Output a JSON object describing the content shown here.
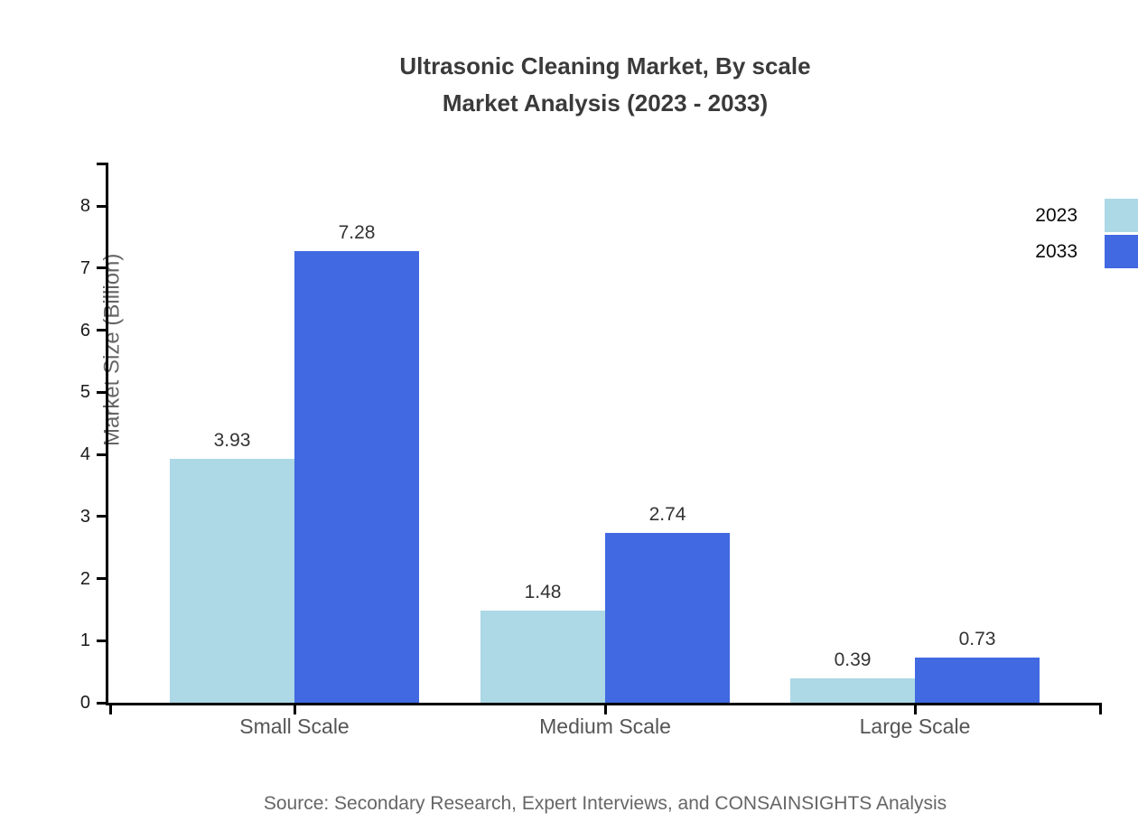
{
  "title": {
    "line1": "Ultrasonic Cleaning Market, By scale",
    "line2": "Market Analysis (2023 - 2033)"
  },
  "y_axis": {
    "label": "Market Size (Billion)",
    "ticks": [
      0,
      1,
      2,
      3,
      4,
      5,
      6,
      7,
      8
    ]
  },
  "legend": {
    "items": [
      {
        "label": "2023",
        "color": "#add8e6"
      },
      {
        "label": "2033",
        "color": "#4169e1"
      }
    ]
  },
  "source": "Source: Secondary Research, Expert Interviews, and CONSAINSIGHTS Analysis",
  "colors": {
    "series_2023": "#add8e6",
    "series_2033": "#4169e1",
    "axis": "#000000",
    "title_text": "#3a3a3a",
    "category_text": "#555555",
    "muted_text": "#666666"
  },
  "chart_data": {
    "type": "bar",
    "categories": [
      "Small Scale",
      "Medium Scale",
      "Large Scale"
    ],
    "series": [
      {
        "name": "2023",
        "color": "#add8e6",
        "values": [
          3.93,
          1.48,
          0.39
        ]
      },
      {
        "name": "2033",
        "color": "#4169e1",
        "values": [
          7.28,
          2.74,
          0.73
        ]
      }
    ],
    "title": "Ultrasonic Cleaning Market, By scale Market Analysis (2023 - 2033)",
    "xlabel": "",
    "ylabel": "Market Size (Billion)",
    "ylim": [
      0,
      8
    ],
    "grid": false,
    "legend_position": "right",
    "value_labels": true
  }
}
